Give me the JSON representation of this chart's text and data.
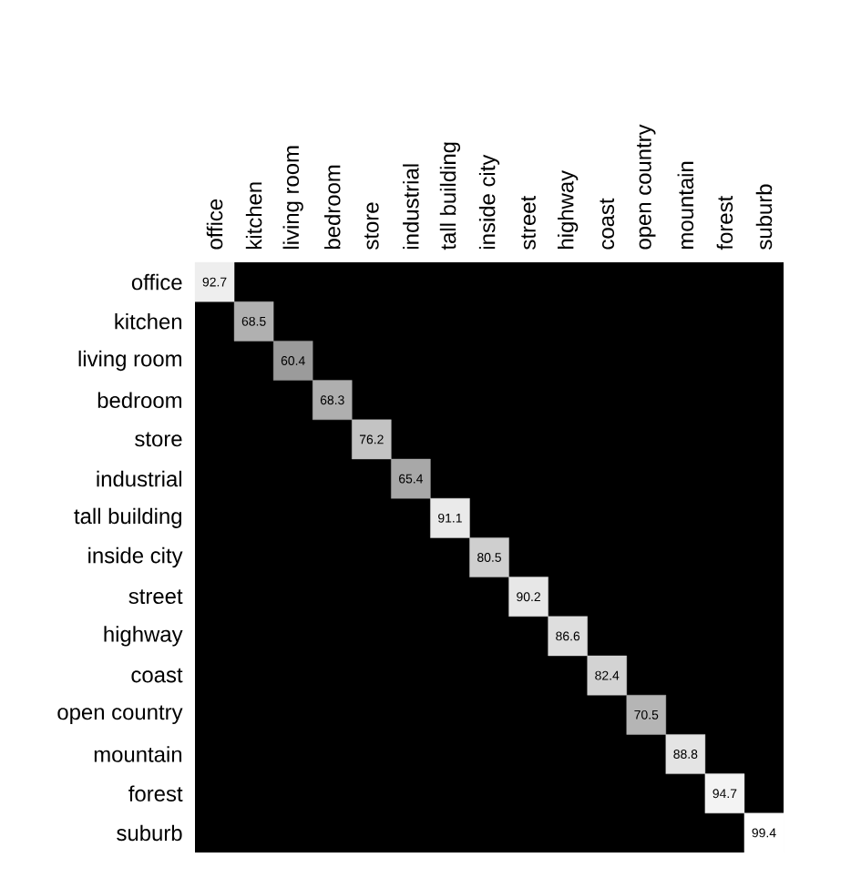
{
  "chart_data": {
    "type": "heatmap",
    "categories": [
      "office",
      "kitchen",
      "living room",
      "bedroom",
      "store",
      "industrial",
      "tall building",
      "inside city",
      "street",
      "highway",
      "coast",
      "open country",
      "mountain",
      "forest",
      "suburb"
    ],
    "y_categories": [
      "office",
      "kitchen",
      "living room",
      "bedroom",
      "store",
      "industrial",
      "tall building",
      "inside city",
      "street",
      "highway",
      "coast",
      "open country",
      "mountain",
      "forest",
      "suburb"
    ],
    "cells": [
      [
        92.7,
        null,
        null,
        null,
        null,
        null,
        null,
        null,
        null,
        null,
        null,
        null,
        null,
        null,
        null
      ],
      [
        null,
        68.5,
        null,
        null,
        null,
        null,
        null,
        null,
        null,
        null,
        null,
        null,
        null,
        null,
        null
      ],
      [
        null,
        null,
        60.4,
        null,
        null,
        null,
        null,
        null,
        null,
        null,
        null,
        null,
        null,
        null,
        null
      ],
      [
        null,
        null,
        null,
        68.3,
        null,
        null,
        null,
        null,
        null,
        null,
        null,
        null,
        null,
        null,
        null
      ],
      [
        null,
        null,
        null,
        null,
        76.2,
        null,
        null,
        null,
        null,
        null,
        null,
        null,
        null,
        null,
        null
      ],
      [
        null,
        null,
        null,
        null,
        null,
        65.4,
        null,
        null,
        null,
        null,
        null,
        null,
        null,
        null,
        null
      ],
      [
        null,
        null,
        null,
        null,
        null,
        null,
        91.1,
        null,
        null,
        null,
        null,
        null,
        null,
        null,
        null
      ],
      [
        null,
        null,
        null,
        null,
        null,
        null,
        null,
        80.5,
        null,
        null,
        null,
        null,
        null,
        null,
        null
      ],
      [
        null,
        null,
        null,
        null,
        null,
        null,
        null,
        null,
        90.2,
        null,
        null,
        null,
        null,
        null,
        null
      ],
      [
        null,
        null,
        null,
        null,
        null,
        null,
        null,
        null,
        null,
        86.6,
        null,
        null,
        null,
        null,
        null
      ],
      [
        null,
        null,
        null,
        null,
        null,
        null,
        null,
        null,
        null,
        null,
        82.4,
        null,
        null,
        null,
        null
      ],
      [
        null,
        null,
        null,
        null,
        null,
        null,
        null,
        null,
        null,
        null,
        null,
        70.5,
        null,
        null,
        null
      ],
      [
        null,
        null,
        null,
        null,
        null,
        null,
        null,
        null,
        null,
        null,
        null,
        null,
        88.8,
        null,
        null
      ],
      [
        null,
        null,
        null,
        null,
        null,
        null,
        null,
        null,
        null,
        null,
        null,
        null,
        null,
        94.7,
        null
      ],
      [
        null,
        null,
        null,
        null,
        null,
        null,
        null,
        null,
        null,
        null,
        null,
        null,
        null,
        null,
        99.4
      ]
    ],
    "data_labels": true
  }
}
